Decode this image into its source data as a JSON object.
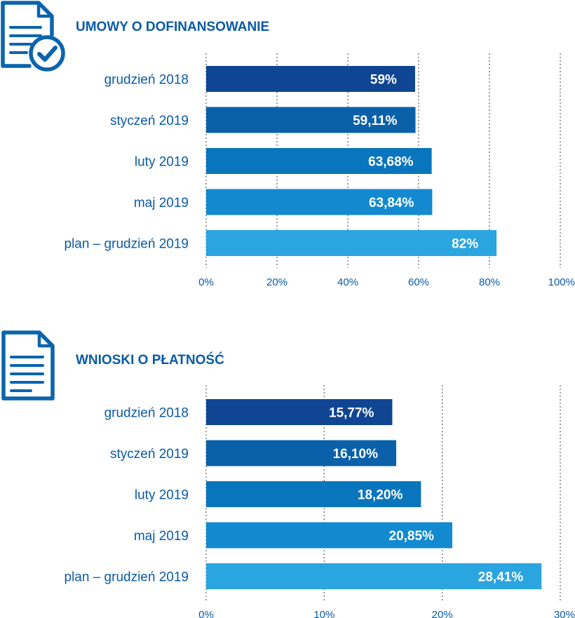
{
  "colors": {
    "title": "#0a5aa6",
    "text": "#0a5aa6",
    "icon": "#0b64ad",
    "bars": [
      "#0f4592",
      "#0b61a9",
      "#0975bd",
      "#1389cf",
      "#2aa5e0"
    ]
  },
  "icons": [
    "document-check-icon",
    "document-text-icon"
  ],
  "chart_data": [
    {
      "type": "bar",
      "orientation": "horizontal",
      "title": "UMOWY O DOFINANSOWANIE",
      "categories": [
        "grudzień 2018",
        "styczeń 2019",
        "luty 2019",
        "maj 2019",
        "plan – grudzień 2019"
      ],
      "values": [
        59,
        59.11,
        63.68,
        63.84,
        82
      ],
      "value_labels": [
        "59%",
        "59,11%",
        "63,68%",
        "63,84%",
        "82%"
      ],
      "xlim": [
        0,
        100
      ],
      "ticks": [
        0,
        20,
        40,
        60,
        80,
        100
      ],
      "tick_labels": [
        "0%",
        "20%",
        "40%",
        "60%",
        "80%",
        "100%"
      ],
      "grid": true,
      "xlabel": "",
      "ylabel": ""
    },
    {
      "type": "bar",
      "orientation": "horizontal",
      "title": "WNIOSKI O PŁATNOŚĆ",
      "categories": [
        "grudzień 2018",
        "styczeń 2019",
        "luty 2019",
        "maj 2019",
        "plan – grudzień 2019"
      ],
      "values": [
        15.77,
        16.1,
        18.2,
        20.85,
        28.41
      ],
      "value_labels": [
        "15,77%",
        "16,10%",
        "18,20%",
        "20,85%",
        "28,41%"
      ],
      "xlim": [
        0,
        30
      ],
      "ticks": [
        0,
        10,
        20,
        30
      ],
      "tick_labels": [
        "0%",
        "10%",
        "20%",
        "30%"
      ],
      "grid": true,
      "xlabel": "",
      "ylabel": ""
    }
  ]
}
